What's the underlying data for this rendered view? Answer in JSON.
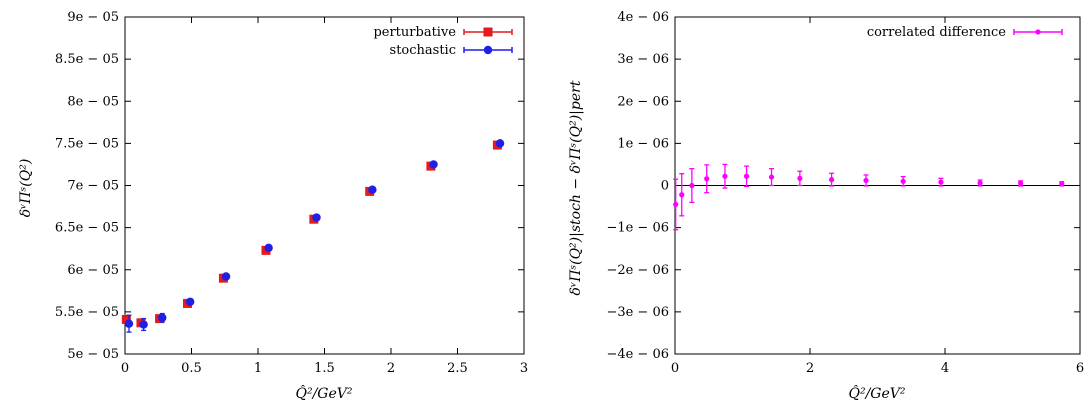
{
  "chart_data": [
    {
      "type": "scatter",
      "title": "",
      "xlabel": "Q̂²/GeV²",
      "ylabel": "δᵛΠˢ(Q²)",
      "xlim": [
        0,
        3
      ],
      "ylim": [
        5e-05,
        9e-05
      ],
      "xticks": [
        0,
        0.5,
        1,
        1.5,
        2,
        2.5,
        3
      ],
      "xtick_labels": [
        "0",
        "0.5",
        "1",
        "1.5",
        "2",
        "2.5",
        "3"
      ],
      "yticks": [
        5e-05,
        5.5e-05,
        6e-05,
        6.5e-05,
        7e-05,
        7.5e-05,
        8e-05,
        8.5e-05,
        9e-05
      ],
      "ytick_labels": [
        "5e − 05",
        "5.5e − 05",
        "6e − 05",
        "6.5e − 05",
        "7e − 05",
        "7.5e − 05",
        "8e − 05",
        "8.5e − 05",
        "9e − 05"
      ],
      "grid": false,
      "legend_position": "top-right",
      "series": [
        {
          "name": "perturbative",
          "color": "#e41a1c",
          "marker": "square",
          "x": [
            0.01,
            0.12,
            0.26,
            0.47,
            0.74,
            1.06,
            1.42,
            1.84,
            2.3,
            2.8
          ],
          "y": [
            5.41e-05,
            5.37e-05,
            5.42e-05,
            5.6e-05,
            5.9e-05,
            6.23e-05,
            6.6e-05,
            6.93e-05,
            7.23e-05,
            7.48e-05
          ],
          "yerr": [
            0,
            0,
            0,
            0,
            0,
            0,
            0,
            0,
            0,
            0
          ]
        },
        {
          "name": "stochastic",
          "color": "#1f1fe6",
          "marker": "circle",
          "x": [
            0.03,
            0.14,
            0.28,
            0.49,
            0.76,
            1.08,
            1.44,
            1.86,
            2.32,
            2.82
          ],
          "y": [
            5.36e-05,
            5.35e-05,
            5.43e-05,
            5.62e-05,
            5.92e-05,
            6.26e-05,
            6.62e-05,
            6.95e-05,
            7.25e-05,
            7.5e-05
          ],
          "yerr": [
            1e-06,
            7e-07,
            5e-07,
            3e-07,
            2e-07,
            2e-07,
            1.5e-07,
            1.5e-07,
            1e-07,
            1e-07
          ]
        }
      ]
    },
    {
      "type": "scatter",
      "title": "",
      "xlabel": "Q̂²/GeV²",
      "ylabel": "δᵛΠˢ(Q²)|stoch − δᵛΠˢ(Q²)|pert",
      "xlim": [
        0,
        6
      ],
      "ylim": [
        -4e-06,
        4e-06
      ],
      "xticks": [
        0,
        2,
        4,
        6
      ],
      "xtick_labels": [
        "0",
        "2",
        "4",
        "6"
      ],
      "yticks": [
        -4e-06,
        -3e-06,
        -2e-06,
        -1e-06,
        0,
        1e-06,
        2e-06,
        3e-06,
        4e-06
      ],
      "ytick_labels": [
        "−4e − 06",
        "−3e − 06",
        "−2e − 06",
        "−1e − 06",
        "0",
        "1e − 06",
        "2e − 06",
        "3e − 06",
        "4e − 06"
      ],
      "grid": false,
      "zero_line": true,
      "legend_position": "top-right",
      "series": [
        {
          "name": "correlated difference",
          "color": "#ff00ff",
          "marker": "circle",
          "x": [
            0.01,
            0.1,
            0.25,
            0.47,
            0.74,
            1.06,
            1.43,
            1.85,
            2.32,
            2.83,
            3.38,
            3.94,
            4.52,
            5.12,
            5.73
          ],
          "y": [
            -4.5e-07,
            -2.2e-07,
            0.0,
            1.6e-07,
            2.2e-07,
            2.2e-07,
            2e-07,
            1.7e-07,
            1.4e-07,
            1.2e-07,
            1e-07,
            8e-08,
            6e-08,
            5e-08,
            4e-08
          ],
          "yerr": [
            6e-07,
            5e-07,
            4e-07,
            3.3e-07,
            2.8e-07,
            2.4e-07,
            2e-07,
            1.7e-07,
            1.5e-07,
            1.3e-07,
            1.1e-07,
            9e-08,
            7e-08,
            6e-08,
            5e-08
          ]
        }
      ]
    }
  ]
}
